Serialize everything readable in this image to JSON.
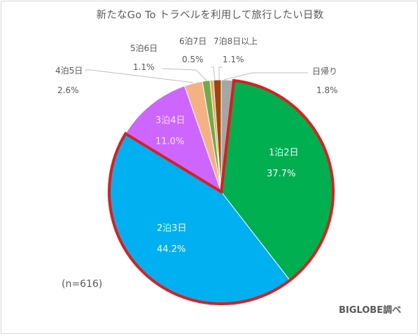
{
  "title": "新たなGo To トラベルを利用して旅行したい日数",
  "sample_note": "(n=616)",
  "source": "BIGLOBE調べ",
  "highlight_color": "#e31b1b",
  "chart_data": {
    "type": "pie",
    "title": "新たなGo To トラベルを利用して旅行したい日数",
    "categories": [
      "日帰り",
      "1泊2日",
      "2泊3日",
      "3泊4日",
      "4泊5日",
      "5泊6日",
      "6泊7日",
      "7泊8日以上"
    ],
    "values": [
      1.8,
      37.7,
      44.2,
      11.0,
      2.6,
      1.1,
      0.5,
      1.1
    ],
    "unit": "%",
    "colors": [
      "#a6a6a6",
      "#00b050",
      "#00b0f0",
      "#cc66ff",
      "#f4b183",
      "#70ad47",
      "#f4a460",
      "#9e480e"
    ],
    "start_angle": "12 o'clock, clockwise",
    "highlighted": [
      "1泊2日",
      "2泊3日"
    ],
    "n": 616,
    "annotation": "BIGLOBE調べ"
  },
  "labels": {
    "higaeri": {
      "name": "日帰り",
      "pct": "1.8%"
    },
    "n1": {
      "name": "1泊2日",
      "pct": "37.7%"
    },
    "n2": {
      "name": "2泊3日",
      "pct": "44.2%"
    },
    "n3": {
      "name": "3泊4日",
      "pct": "11.0%"
    },
    "n4": {
      "name": "4泊5日",
      "pct": "2.6%"
    },
    "n5": {
      "name": "5泊6日",
      "pct": "1.1%"
    },
    "n6": {
      "name": "6泊7日",
      "pct": "0.5%"
    },
    "n7": {
      "name": "7泊8日以上",
      "pct": "1.1%"
    }
  }
}
